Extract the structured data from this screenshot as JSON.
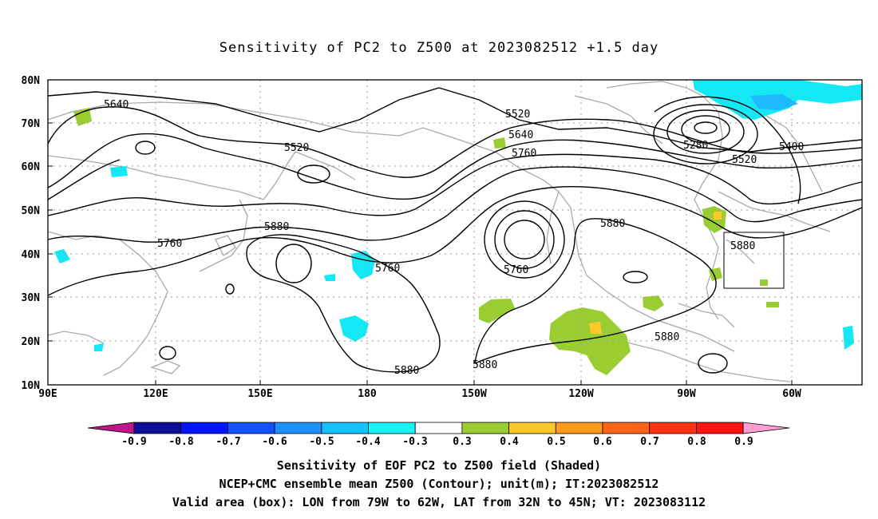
{
  "title": "Sensitivity of PC2 to Z500 at 2023082512 +1.5 day",
  "map": {
    "lon_ticks": [
      "90E",
      "120E",
      "150E",
      "180",
      "150W",
      "120W",
      "90W",
      "60W"
    ],
    "lat_ticks": [
      "80N",
      "70N",
      "60N",
      "50N",
      "40N",
      "30N",
      "20N",
      "10N"
    ],
    "contour_labels": [
      "5640",
      "5520",
      "5520",
      "5640",
      "5760",
      "5280",
      "5400",
      "5520",
      "5760",
      "5880",
      "5880",
      "5760",
      "5760",
      "5880",
      "5880",
      "5880",
      "5880"
    ],
    "valid_box": {
      "lon_range": "79W-62W",
      "lat_range": "32N-45N"
    },
    "colors": {
      "coast": "#aaaaaa",
      "grid": "#999999",
      "contour": "#000000"
    }
  },
  "colorbar": {
    "labels": [
      "-0.9",
      "-0.8",
      "-0.7",
      "-0.6",
      "-0.5",
      "-0.4",
      "-0.3",
      "0.3",
      "0.4",
      "0.5",
      "0.6",
      "0.7",
      "0.8",
      "0.9"
    ],
    "colors": [
      "#c0168a",
      "#0b0f9a",
      "#0014ff",
      "#1450ff",
      "#1e90ff",
      "#14c2ff",
      "#18f4f4",
      "#ffffff",
      "#9acd32",
      "#ffc82a",
      "#ff9a18",
      "#ff6418",
      "#ff3214",
      "#ff1414",
      "#ff9ed2"
    ]
  },
  "captions": {
    "line1": "Sensitivity of EOF PC2 to Z500 field (Shaded)",
    "line2": "NCEP+CMC ensemble mean Z500 (Contour); unit(m); IT:2023082512",
    "line3": "Valid area (box): LON from 79W to 62W, LAT from 32N to 45N; VT: 2023083112"
  }
}
